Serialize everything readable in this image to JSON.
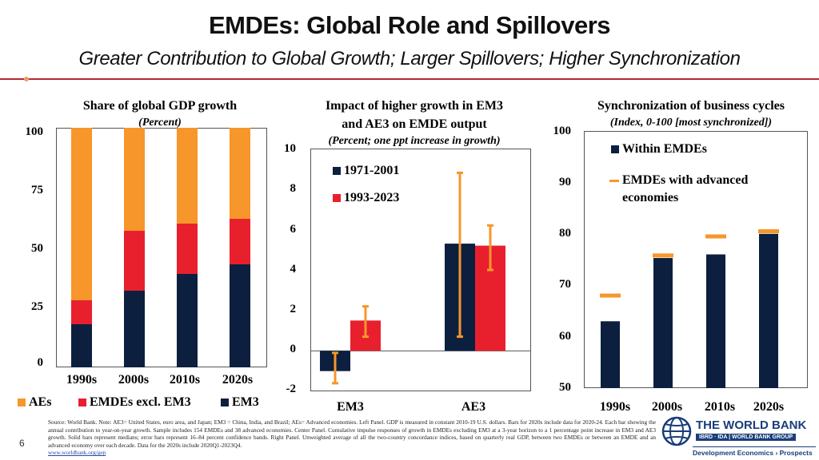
{
  "header": {
    "title": "EMDEs: Global Role and Spillovers",
    "subtitle": "Greater Contribution to Global Growth; Larger Spillovers; Higher Synchronization"
  },
  "colors": {
    "navy": "#0c1f3f",
    "red": "#e8202e",
    "orange": "#f7962a",
    "accent": "#b22a36"
  },
  "chart_data": [
    {
      "type": "bar",
      "stacked": true,
      "title": "Share of global GDP growth",
      "subtitle": "(Percent)",
      "categories": [
        "1990s",
        "2000s",
        "2010s",
        "2020s"
      ],
      "series": [
        {
          "name": "EM3",
          "color": "#0c1f3f",
          "values": [
            18,
            32,
            39,
            43
          ]
        },
        {
          "name": "EMDEs excl. EM3",
          "color": "#e8202e",
          "values": [
            10,
            25,
            21,
            19
          ]
        },
        {
          "name": "AEs",
          "color": "#f7962a",
          "values": [
            72,
            43,
            40,
            38
          ]
        }
      ],
      "ylim": [
        0,
        100
      ],
      "yticks": [
        "0",
        "25",
        "50",
        "75",
        "100"
      ],
      "legend": [
        "AEs",
        "EMDEs excl. EM3",
        "EM3"
      ]
    },
    {
      "type": "bar",
      "title_line1": "Impact of higher growth in EM3",
      "title_line2": "and AE3 on EMDE output",
      "subtitle": "(Percent; one ppt increase in growth)",
      "categories": [
        "EM3",
        "AE3"
      ],
      "series": [
        {
          "name": "1971-2001",
          "color": "#0c1f3f",
          "values": [
            -1.0,
            5.3
          ],
          "lower": [
            -1.6,
            0.7
          ],
          "upper": [
            -0.1,
            8.8
          ]
        },
        {
          "name": "1993-2023",
          "color": "#e8202e",
          "values": [
            1.5,
            5.2
          ],
          "lower": [
            0.7,
            4.0
          ],
          "upper": [
            2.2,
            6.2
          ]
        }
      ],
      "error_color": "#f7962a",
      "ylim": [
        -2,
        10
      ],
      "yticks": [
        "-2",
        "0",
        "2",
        "4",
        "6",
        "8",
        "10"
      ],
      "legend": [
        "1971-2001",
        "1993-2023"
      ]
    },
    {
      "type": "bar",
      "title": "Synchronization of business cycles",
      "subtitle": "(Index, 0-100 [most synchronized])",
      "categories": [
        "1990s",
        "2000s",
        "2010s",
        "2020s"
      ],
      "series": [
        {
          "name": "Within EMDEs",
          "color": "#0c1f3f",
          "values": [
            63,
            75.3,
            76,
            80
          ]
        },
        {
          "name": "EMDEs with advanced economies",
          "color": "#f7962a",
          "marker": "dash",
          "values": [
            68,
            75.8,
            79.5,
            80.5
          ]
        }
      ],
      "ylim": [
        50,
        100
      ],
      "yticks": [
        "50",
        "60",
        "70",
        "80",
        "90",
        "100"
      ],
      "legend_1": "Within EMDEs",
      "legend_2_line1": "EMDEs with advanced",
      "legend_2_line2": "economies"
    }
  ],
  "footer": {
    "page": "6",
    "source": "Source: World Bank. Note: AE3= United States, euro area, and Japan; EM3 = China, India, and Brazil; AEs= Advanced economies. Left Panel. GDP is measured in constant 2010-19 U.S. dollars. Bars for 2020s include data for 2020-24. Each bar showing the annual contribution to year-on-year growth. Sample includes 154 EMDEs and 38 advanced economies. Center Panel. Cumulative impulse responses of growth in EMDEs excluding EM3 at a 3-year horizon to a 1 percentage point increase in EM3 and AE3 growth. Solid bars represent medians; error bars represent 16–84 percent confidence bands. Right Panel. Unweighted average of all the two-country concordance indices, based on quarterly real GDP, between two EMDEs or between an EMDE and an advanced economy over each decade. Data for the 2020s include 2020Q1-2023Q4.",
    "link": "www.worldbank.org/gep"
  },
  "logo": {
    "name": "THE WORLD BANK",
    "tagline": "IBRD · IDA | WORLD BANK GROUP",
    "unit": "Development Economics › Prospects"
  }
}
